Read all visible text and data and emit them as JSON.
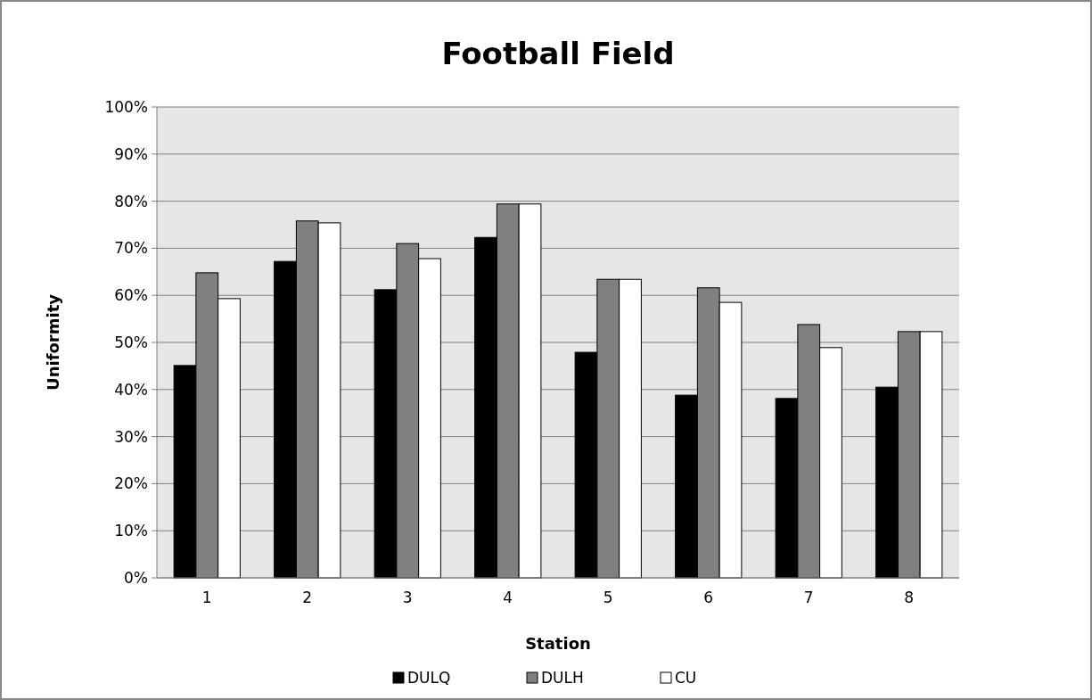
{
  "chart_data": {
    "type": "bar",
    "title": "Football Field",
    "xlabel": "Station",
    "ylabel": "Uniformity",
    "categories": [
      "1",
      "2",
      "3",
      "4",
      "5",
      "6",
      "7",
      "8"
    ],
    "series": [
      {
        "name": "DULQ",
        "color": "#000000",
        "values": [
          45.1,
          67.2,
          61.2,
          72.3,
          47.9,
          38.8,
          38.1,
          40.5
        ]
      },
      {
        "name": "DULH",
        "color": "#808080",
        "values": [
          64.8,
          75.8,
          71,
          79.4,
          63.4,
          61.6,
          53.8,
          52.3
        ]
      },
      {
        "name": "CU",
        "color": "#ffffff",
        "values": [
          59.3,
          75.4,
          67.8,
          79.4,
          63.4,
          58.5,
          48.9,
          52.3
        ]
      }
    ],
    "ylim": [
      0,
      100
    ],
    "yticks": [
      {
        "value": 0,
        "label": "0%"
      },
      {
        "value": 10,
        "label": "10%"
      },
      {
        "value": 20,
        "label": "20%"
      },
      {
        "value": 30,
        "label": "30%"
      },
      {
        "value": 40,
        "label": "40%"
      },
      {
        "value": 50,
        "label": "50%"
      },
      {
        "value": 60,
        "label": "60%"
      },
      {
        "value": 70,
        "label": "70%"
      },
      {
        "value": 80,
        "label": "80%"
      },
      {
        "value": 90,
        "label": "90%"
      },
      {
        "value": 100,
        "label": "100%"
      }
    ],
    "grid": "y",
    "legend": "bottom"
  }
}
